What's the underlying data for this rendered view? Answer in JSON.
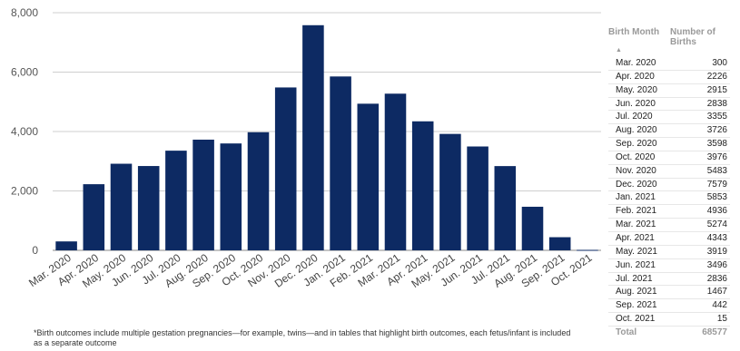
{
  "chart_data": {
    "type": "bar",
    "categories": [
      "Mar. 2020",
      "Apr. 2020",
      "May. 2020",
      "Jun. 2020",
      "Jul. 2020",
      "Aug. 2020",
      "Sep. 2020",
      "Oct. 2020",
      "Nov. 2020",
      "Dec. 2020",
      "Jan. 2021",
      "Feb. 2021",
      "Mar. 2021",
      "Apr. 2021",
      "May. 2021",
      "Jun. 2021",
      "Jul. 2021",
      "Aug. 2021",
      "Sep. 2021",
      "Oct. 2021"
    ],
    "values": [
      300,
      2226,
      2915,
      2838,
      3355,
      3726,
      3598,
      3976,
      5483,
      7579,
      5853,
      4936,
      5274,
      4343,
      3919,
      3496,
      2836,
      1467,
      442,
      15
    ],
    "ylim": [
      0,
      8000
    ],
    "yticks": [
      "0",
      "2,000",
      "4,000",
      "6,000",
      "8,000"
    ],
    "ytick_values": [
      0,
      2000,
      4000,
      6000,
      8000
    ],
    "grid": true,
    "bar_color": "#0d2a63"
  },
  "table": {
    "header_month": "Birth Month",
    "header_births": "Number of Births",
    "rows": [
      {
        "month": "Mar. 2020",
        "births": "300"
      },
      {
        "month": "Apr. 2020",
        "births": "2226"
      },
      {
        "month": "May. 2020",
        "births": "2915"
      },
      {
        "month": "Jun. 2020",
        "births": "2838"
      },
      {
        "month": "Jul. 2020",
        "births": "3355"
      },
      {
        "month": "Aug. 2020",
        "births": "3726"
      },
      {
        "month": "Sep. 2020",
        "births": "3598"
      },
      {
        "month": "Oct. 2020",
        "births": "3976"
      },
      {
        "month": "Nov. 2020",
        "births": "5483"
      },
      {
        "month": "Dec. 2020",
        "births": "7579"
      },
      {
        "month": "Jan. 2021",
        "births": "5853"
      },
      {
        "month": "Feb. 2021",
        "births": "4936"
      },
      {
        "month": "Mar. 2021",
        "births": "5274"
      },
      {
        "month": "Apr. 2021",
        "births": "4343"
      },
      {
        "month": "May. 2021",
        "births": "3919"
      },
      {
        "month": "Jun. 2021",
        "births": "3496"
      },
      {
        "month": "Jul. 2021",
        "births": "2836"
      },
      {
        "month": "Aug. 2021",
        "births": "1467"
      },
      {
        "month": "Sep. 2021",
        "births": "442"
      },
      {
        "month": "Oct. 2021",
        "births": "15"
      }
    ],
    "total_label": "Total",
    "total_value": "68577"
  },
  "footnote": "*Birth outcomes include multiple gestation pregnancies—for example, twins—and in tables that highlight birth outcomes, each fetus/infant is included as a separate outcome"
}
